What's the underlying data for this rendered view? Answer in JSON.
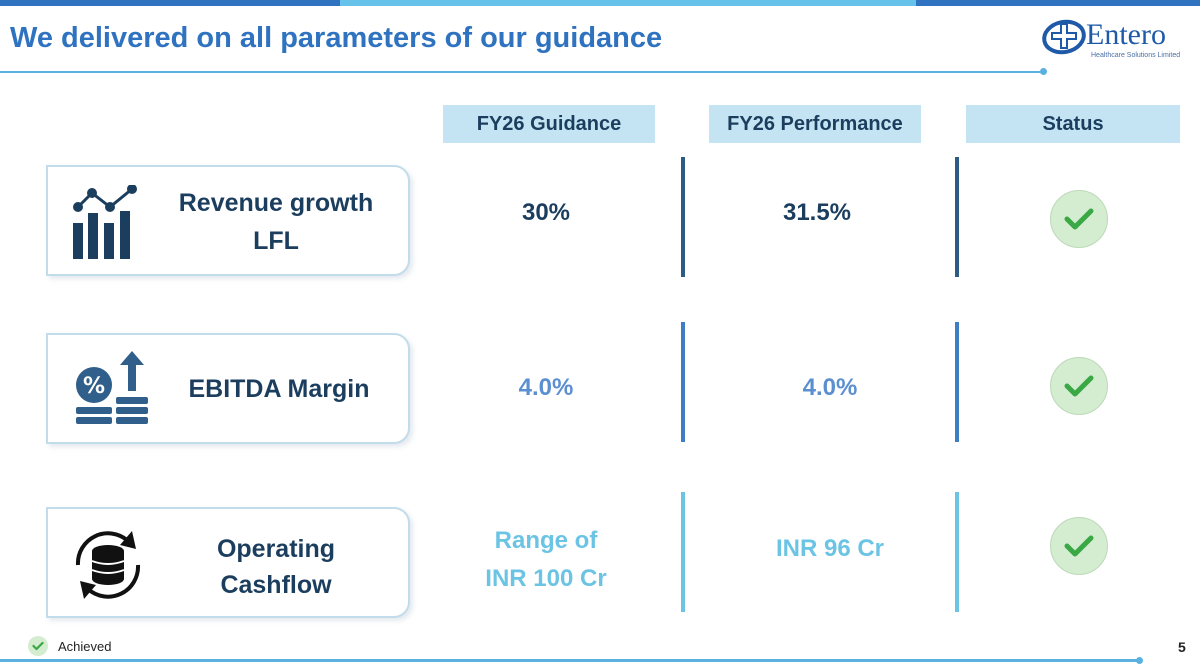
{
  "colors": {
    "title": "#2f73c0",
    "row1_value": "#1c3e5e",
    "row2_value": "#5b8fcf",
    "row3_value": "#6cc4e4",
    "status_fill": "#d4edd0",
    "check": "#3aa845"
  },
  "header": {
    "title": "We delivered on all parameters of our guidance",
    "logo_name": "Entero",
    "logo_tagline": "Healthcare Solutions Limited"
  },
  "columns": {
    "guidance": "FY26 Guidance",
    "performance": "FY26 Performance",
    "status": "Status"
  },
  "rows": [
    {
      "icon": "bar-chart-growth-icon",
      "label_line1": "Revenue growth",
      "label_line2": "LFL",
      "guidance_line1": "30%",
      "guidance_line2": "",
      "performance": "31.5%",
      "status": "achieved"
    },
    {
      "icon": "percent-coins-arrow-icon",
      "label_line1": "EBITDA Margin",
      "label_line2": "",
      "guidance_line1": "4.0%",
      "guidance_line2": "",
      "performance": "4.0%",
      "status": "achieved"
    },
    {
      "icon": "database-sync-icon",
      "label_line1": "Operating",
      "label_line2": "Cashflow",
      "guidance_line1": "Range of",
      "guidance_line2": "INR 100 Cr",
      "performance": "INR 96 Cr",
      "status": "achieved"
    }
  ],
  "legend": {
    "icon": "check-icon",
    "label": "Achieved"
  },
  "page_number": "5"
}
